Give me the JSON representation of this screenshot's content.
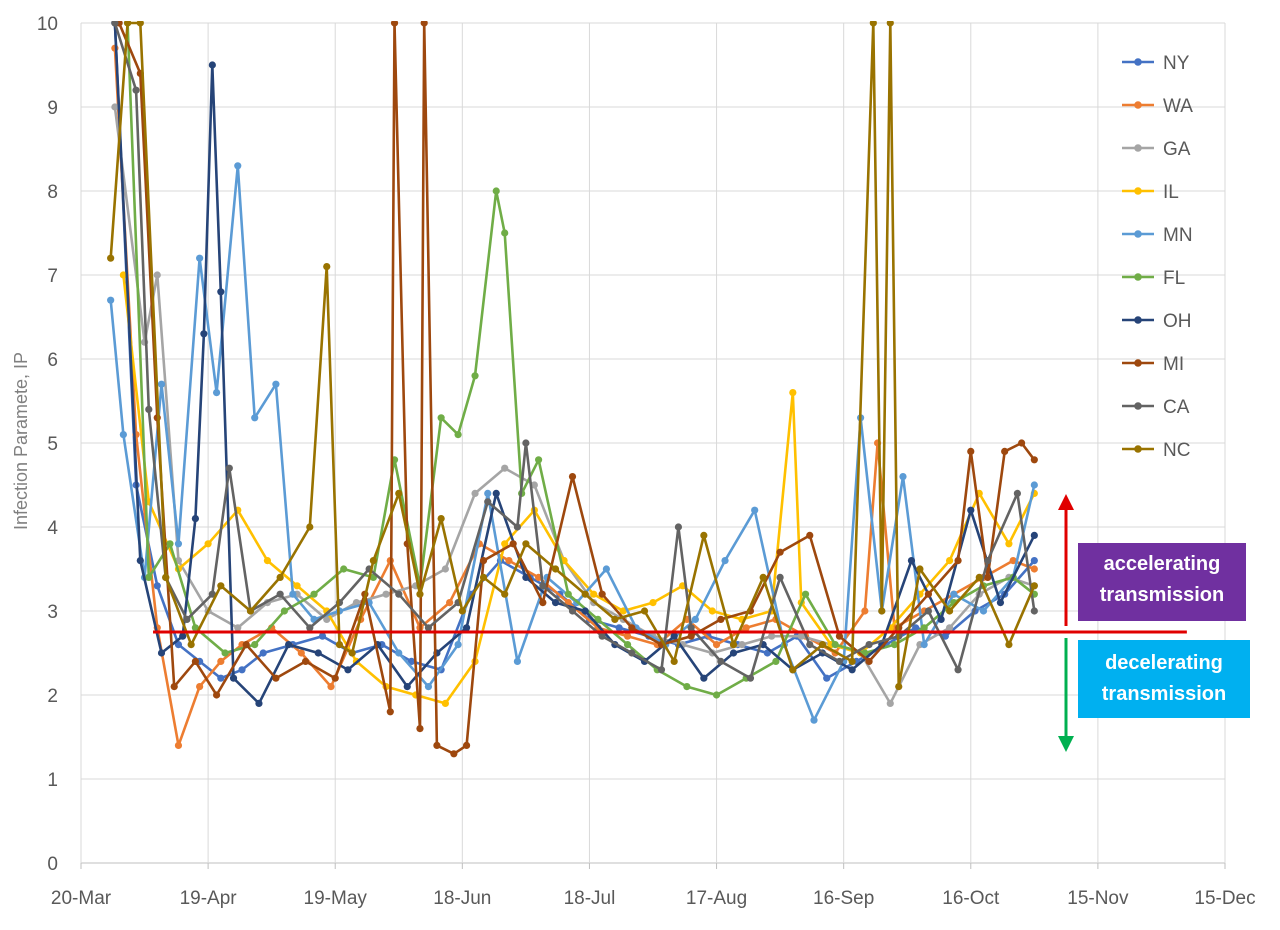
{
  "chart_data": {
    "type": "line",
    "title": "",
    "xlabel": "",
    "ylabel": "Infection Paramete, IP",
    "ylim": [
      0,
      10
    ],
    "y_ticks": [
      0,
      1,
      2,
      3,
      4,
      5,
      6,
      7,
      8,
      9,
      10
    ],
    "x_range": [
      "2020-03-20",
      "2020-12-15"
    ],
    "x_ticks": [
      "20-Mar",
      "19-Apr",
      "19-May",
      "18-Jun",
      "18-Jul",
      "17-Aug",
      "16-Sep",
      "16-Oct",
      "15-Nov",
      "15-Dec"
    ],
    "grid": true,
    "legend_position": "right",
    "series": [
      {
        "name": "NY",
        "color": "#4472c4",
        "x": [
          "2020-03-28",
          "2020-04-02",
          "2020-04-07",
          "2020-04-12",
          "2020-04-17",
          "2020-04-22",
          "2020-04-27",
          "2020-05-02",
          "2020-05-09",
          "2020-05-16",
          "2020-05-23",
          "2020-05-30",
          "2020-06-06",
          "2020-06-13",
          "2020-06-20",
          "2020-06-27",
          "2020-07-04",
          "2020-07-11",
          "2020-07-18",
          "2020-07-25",
          "2020-08-01",
          "2020-08-08",
          "2020-08-15",
          "2020-08-22",
          "2020-08-29",
          "2020-09-05",
          "2020-09-12",
          "2020-09-19",
          "2020-09-26",
          "2020-10-03",
          "2020-10-10",
          "2020-10-17",
          "2020-10-24",
          "2020-10-31"
        ],
        "y": [
          10.0,
          4.5,
          3.3,
          2.6,
          2.4,
          2.2,
          2.3,
          2.5,
          2.6,
          2.7,
          2.5,
          2.6,
          2.4,
          2.3,
          3.2,
          3.6,
          3.4,
          3.2,
          2.9,
          2.8,
          2.7,
          2.6,
          2.7,
          2.6,
          2.5,
          2.7,
          2.2,
          2.4,
          2.6,
          2.8,
          2.7,
          3.0,
          3.2,
          3.6
        ]
      },
      {
        "name": "WA",
        "color": "#ed7d31",
        "x": [
          "2020-03-28",
          "2020-04-02",
          "2020-04-07",
          "2020-04-12",
          "2020-04-17",
          "2020-04-22",
          "2020-04-27",
          "2020-05-04",
          "2020-05-11",
          "2020-05-18",
          "2020-05-25",
          "2020-06-01",
          "2020-06-08",
          "2020-06-15",
          "2020-06-22",
          "2020-06-29",
          "2020-07-06",
          "2020-07-13",
          "2020-07-20",
          "2020-07-27",
          "2020-08-03",
          "2020-08-10",
          "2020-08-17",
          "2020-08-24",
          "2020-08-31",
          "2020-09-07",
          "2020-09-14",
          "2020-09-21",
          "2020-09-24",
          "2020-09-28",
          "2020-10-05",
          "2020-10-12",
          "2020-10-19",
          "2020-10-26",
          "2020-10-31"
        ],
        "y": [
          9.7,
          5.1,
          2.8,
          1.4,
          2.1,
          2.4,
          2.6,
          2.8,
          2.5,
          2.1,
          2.9,
          3.6,
          2.8,
          3.1,
          3.8,
          3.6,
          3.4,
          3.1,
          2.8,
          2.7,
          2.6,
          2.9,
          2.6,
          2.8,
          2.9,
          2.7,
          2.5,
          3.0,
          5.0,
          2.8,
          3.0,
          3.2,
          3.4,
          3.6,
          3.5
        ]
      },
      {
        "name": "GA",
        "color": "#a5a5a5",
        "x": [
          "2020-03-28",
          "2020-04-04",
          "2020-04-07",
          "2020-04-12",
          "2020-04-19",
          "2020-04-26",
          "2020-05-03",
          "2020-05-10",
          "2020-05-17",
          "2020-05-24",
          "2020-05-31",
          "2020-06-07",
          "2020-06-14",
          "2020-06-21",
          "2020-06-28",
          "2020-07-05",
          "2020-07-12",
          "2020-07-19",
          "2020-07-26",
          "2020-08-02",
          "2020-08-09",
          "2020-08-16",
          "2020-08-23",
          "2020-08-30",
          "2020-09-06",
          "2020-09-13",
          "2020-09-20",
          "2020-09-27",
          "2020-10-04",
          "2020-10-11",
          "2020-10-18",
          "2020-10-25",
          "2020-10-31"
        ],
        "y": [
          9.0,
          6.2,
          7.0,
          3.6,
          3.0,
          2.8,
          3.1,
          3.2,
          2.9,
          3.1,
          3.2,
          3.3,
          3.5,
          4.4,
          4.7,
          4.5,
          3.6,
          3.1,
          2.9,
          2.7,
          2.6,
          2.5,
          2.6,
          2.7,
          2.7,
          2.6,
          2.5,
          1.9,
          2.6,
          2.8,
          3.2,
          3.4,
          3.3
        ]
      },
      {
        "name": "IL",
        "color": "#ffc000",
        "x": [
          "2020-03-30",
          "2020-04-05",
          "2020-04-12",
          "2020-04-19",
          "2020-04-26",
          "2020-05-03",
          "2020-05-10",
          "2020-05-17",
          "2020-05-24",
          "2020-05-31",
          "2020-06-07",
          "2020-06-14",
          "2020-06-21",
          "2020-06-28",
          "2020-07-05",
          "2020-07-12",
          "2020-07-19",
          "2020-07-26",
          "2020-08-02",
          "2020-08-09",
          "2020-08-16",
          "2020-08-23",
          "2020-08-30",
          "2020-09-04",
          "2020-09-06",
          "2020-09-13",
          "2020-09-20",
          "2020-09-27",
          "2020-10-04",
          "2020-10-11",
          "2020-10-18",
          "2020-10-25",
          "2020-10-31"
        ],
        "y": [
          7.0,
          4.3,
          3.5,
          3.8,
          4.2,
          3.6,
          3.3,
          3.0,
          2.4,
          2.1,
          2.0,
          1.9,
          2.4,
          3.8,
          4.2,
          3.6,
          3.2,
          3.0,
          3.1,
          3.3,
          3.0,
          2.9,
          3.0,
          5.6,
          3.1,
          2.6,
          2.5,
          2.8,
          3.2,
          3.6,
          4.4,
          3.8,
          4.4
        ]
      },
      {
        "name": "MN",
        "color": "#5b9bd5",
        "x": [
          "2020-03-27",
          "2020-03-30",
          "2020-04-04",
          "2020-04-08",
          "2020-04-12",
          "2020-04-17",
          "2020-04-21",
          "2020-04-26",
          "2020-04-30",
          "2020-05-05",
          "2020-05-09",
          "2020-05-14",
          "2020-05-20",
          "2020-05-27",
          "2020-06-03",
          "2020-06-10",
          "2020-06-17",
          "2020-06-24",
          "2020-07-01",
          "2020-07-08",
          "2020-07-15",
          "2020-07-22",
          "2020-07-29",
          "2020-08-05",
          "2020-08-12",
          "2020-08-19",
          "2020-08-26",
          "2020-09-02",
          "2020-09-09",
          "2020-09-16",
          "2020-09-20",
          "2020-09-25",
          "2020-09-30",
          "2020-10-05",
          "2020-10-12",
          "2020-10-19",
          "2020-10-26",
          "2020-10-31"
        ],
        "y": [
          6.7,
          5.1,
          3.4,
          5.7,
          3.8,
          7.2,
          5.6,
          8.3,
          5.3,
          5.7,
          3.2,
          2.9,
          3.0,
          3.1,
          2.5,
          2.1,
          2.6,
          4.4,
          2.4,
          3.4,
          3.1,
          3.5,
          2.8,
          2.6,
          2.9,
          3.6,
          4.2,
          2.6,
          1.7,
          2.4,
          5.3,
          3.0,
          4.6,
          2.6,
          3.2,
          3.0,
          3.4,
          4.5
        ]
      },
      {
        "name": "FL",
        "color": "#70ad47",
        "x": [
          "2020-03-31",
          "2020-04-05",
          "2020-04-10",
          "2020-04-16",
          "2020-04-23",
          "2020-04-30",
          "2020-05-07",
          "2020-05-14",
          "2020-05-21",
          "2020-05-28",
          "2020-06-02",
          "2020-06-08",
          "2020-06-13",
          "2020-06-17",
          "2020-06-21",
          "2020-06-26",
          "2020-06-28",
          "2020-07-02",
          "2020-07-06",
          "2020-07-13",
          "2020-07-20",
          "2020-07-27",
          "2020-08-03",
          "2020-08-10",
          "2020-08-17",
          "2020-08-24",
          "2020-08-31",
          "2020-09-07",
          "2020-09-14",
          "2020-09-21",
          "2020-09-28",
          "2020-10-05",
          "2020-10-12",
          "2020-10-19",
          "2020-10-26",
          "2020-10-31"
        ],
        "y": [
          10.0,
          3.4,
          3.8,
          2.8,
          2.5,
          2.6,
          3.0,
          3.2,
          3.5,
          3.4,
          4.8,
          3.3,
          5.3,
          5.1,
          5.8,
          8.0,
          7.5,
          4.4,
          4.8,
          3.2,
          2.9,
          2.6,
          2.3,
          2.1,
          2.0,
          2.2,
          2.4,
          3.2,
          2.6,
          2.5,
          2.6,
          2.8,
          3.1,
          3.3,
          3.4,
          3.2
        ]
      },
      {
        "name": "OH",
        "color": "#264478",
        "x": [
          "2020-03-28",
          "2020-04-03",
          "2020-04-08",
          "2020-04-13",
          "2020-04-16",
          "2020-04-18",
          "2020-04-20",
          "2020-04-22",
          "2020-04-25",
          "2020-05-01",
          "2020-05-08",
          "2020-05-15",
          "2020-05-22",
          "2020-05-29",
          "2020-06-05",
          "2020-06-12",
          "2020-06-19",
          "2020-06-26",
          "2020-07-03",
          "2020-07-10",
          "2020-07-17",
          "2020-07-24",
          "2020-07-31",
          "2020-08-07",
          "2020-08-14",
          "2020-08-21",
          "2020-08-28",
          "2020-09-04",
          "2020-09-11",
          "2020-09-18",
          "2020-09-25",
          "2020-10-02",
          "2020-10-09",
          "2020-10-16",
          "2020-10-23",
          "2020-10-31"
        ],
        "y": [
          10.0,
          3.6,
          2.5,
          2.7,
          4.1,
          6.3,
          9.5,
          6.8,
          2.2,
          1.9,
          2.6,
          2.5,
          2.3,
          2.6,
          2.1,
          2.5,
          2.8,
          4.4,
          3.4,
          3.1,
          3.0,
          2.6,
          2.4,
          2.7,
          2.2,
          2.5,
          2.6,
          2.3,
          2.5,
          2.3,
          2.6,
          3.6,
          2.9,
          4.2,
          3.1,
          3.9
        ]
      },
      {
        "name": "MI",
        "color": "#9e480e",
        "x": [
          "2020-03-29",
          "2020-04-03",
          "2020-04-07",
          "2020-04-11",
          "2020-04-16",
          "2020-04-21",
          "2020-04-28",
          "2020-05-05",
          "2020-05-12",
          "2020-05-19",
          "2020-05-26",
          "2020-06-01",
          "2020-06-02",
          "2020-06-05",
          "2020-06-08",
          "2020-06-09",
          "2020-06-12",
          "2020-06-16",
          "2020-06-19",
          "2020-06-23",
          "2020-06-30",
          "2020-07-07",
          "2020-07-14",
          "2020-07-21",
          "2020-07-28",
          "2020-08-04",
          "2020-08-11",
          "2020-08-18",
          "2020-08-25",
          "2020-09-01",
          "2020-09-08",
          "2020-09-15",
          "2020-09-22",
          "2020-09-29",
          "2020-10-06",
          "2020-10-13",
          "2020-10-16",
          "2020-10-20",
          "2020-10-24",
          "2020-10-28",
          "2020-10-31"
        ],
        "y": [
          10.0,
          9.4,
          5.3,
          2.1,
          2.4,
          2.0,
          2.6,
          2.2,
          2.4,
          2.2,
          3.2,
          1.8,
          10.0,
          3.8,
          1.6,
          10.0,
          1.4,
          1.3,
          1.4,
          3.6,
          3.8,
          3.1,
          4.6,
          3.2,
          2.8,
          2.6,
          2.7,
          2.9,
          3.0,
          3.7,
          3.9,
          2.7,
          2.4,
          2.8,
          3.2,
          3.6,
          4.9,
          3.4,
          4.9,
          5.0,
          4.8
        ]
      },
      {
        "name": "CA",
        "color": "#636363",
        "x": [
          "2020-03-28",
          "2020-04-02",
          "2020-04-05",
          "2020-04-09",
          "2020-04-14",
          "2020-04-20",
          "2020-04-24",
          "2020-04-29",
          "2020-05-06",
          "2020-05-13",
          "2020-05-20",
          "2020-05-27",
          "2020-06-03",
          "2020-06-10",
          "2020-06-17",
          "2020-06-24",
          "2020-07-01",
          "2020-07-03",
          "2020-07-07",
          "2020-07-14",
          "2020-07-21",
          "2020-07-28",
          "2020-08-04",
          "2020-08-08",
          "2020-08-11",
          "2020-08-18",
          "2020-08-25",
          "2020-09-01",
          "2020-09-08",
          "2020-09-15",
          "2020-09-22",
          "2020-09-29",
          "2020-10-06",
          "2020-10-13",
          "2020-10-20",
          "2020-10-27",
          "2020-10-31"
        ],
        "y": [
          10.0,
          9.2,
          5.4,
          3.4,
          2.9,
          3.2,
          4.7,
          3.0,
          3.2,
          2.8,
          3.1,
          3.5,
          3.2,
          2.8,
          3.1,
          4.3,
          4.0,
          5.0,
          3.3,
          3.0,
          2.7,
          2.5,
          2.3,
          4.0,
          2.8,
          2.4,
          2.2,
          3.4,
          2.6,
          2.4,
          2.6,
          2.7,
          3.0,
          2.3,
          3.6,
          4.4,
          3.0
        ]
      },
      {
        "name": "NC",
        "color": "#997300",
        "x": [
          "2020-03-27",
          "2020-03-31",
          "2020-04-03",
          "2020-04-09",
          "2020-04-15",
          "2020-04-22",
          "2020-04-29",
          "2020-05-06",
          "2020-05-13",
          "2020-05-17",
          "2020-05-20",
          "2020-05-23",
          "2020-05-28",
          "2020-06-03",
          "2020-06-08",
          "2020-06-13",
          "2020-06-18",
          "2020-06-23",
          "2020-06-28",
          "2020-07-03",
          "2020-07-10",
          "2020-07-17",
          "2020-07-24",
          "2020-07-31",
          "2020-08-07",
          "2020-08-14",
          "2020-08-21",
          "2020-08-28",
          "2020-09-04",
          "2020-09-11",
          "2020-09-18",
          "2020-09-23",
          "2020-09-25",
          "2020-09-27",
          "2020-09-29",
          "2020-10-04",
          "2020-10-11",
          "2020-10-18",
          "2020-10-25",
          "2020-10-31"
        ],
        "y": [
          7.2,
          10.0,
          10.0,
          3.4,
          2.6,
          3.3,
          3.0,
          3.4,
          4.0,
          7.1,
          2.6,
          2.5,
          3.6,
          4.4,
          3.2,
          4.1,
          3.0,
          3.4,
          3.2,
          3.8,
          3.5,
          3.2,
          2.9,
          3.0,
          2.4,
          3.9,
          2.6,
          3.4,
          2.3,
          2.6,
          2.4,
          10.0,
          3.0,
          10.0,
          2.1,
          3.5,
          3.0,
          3.4,
          2.6,
          3.3
        ]
      }
    ],
    "annotations": {
      "threshold": {
        "value": 2.75,
        "x_start": "2020-04-06",
        "x_end": "2020-12-06",
        "color": "#e00000"
      },
      "accelerating_label": "accelerating transmission",
      "decelerating_label": "decelerating transmission",
      "accelerating_color": "#7030a0",
      "decelerating_color": "#00b0f0",
      "up_arrow_color": "#e00000",
      "down_arrow_color": "#00b050"
    }
  }
}
